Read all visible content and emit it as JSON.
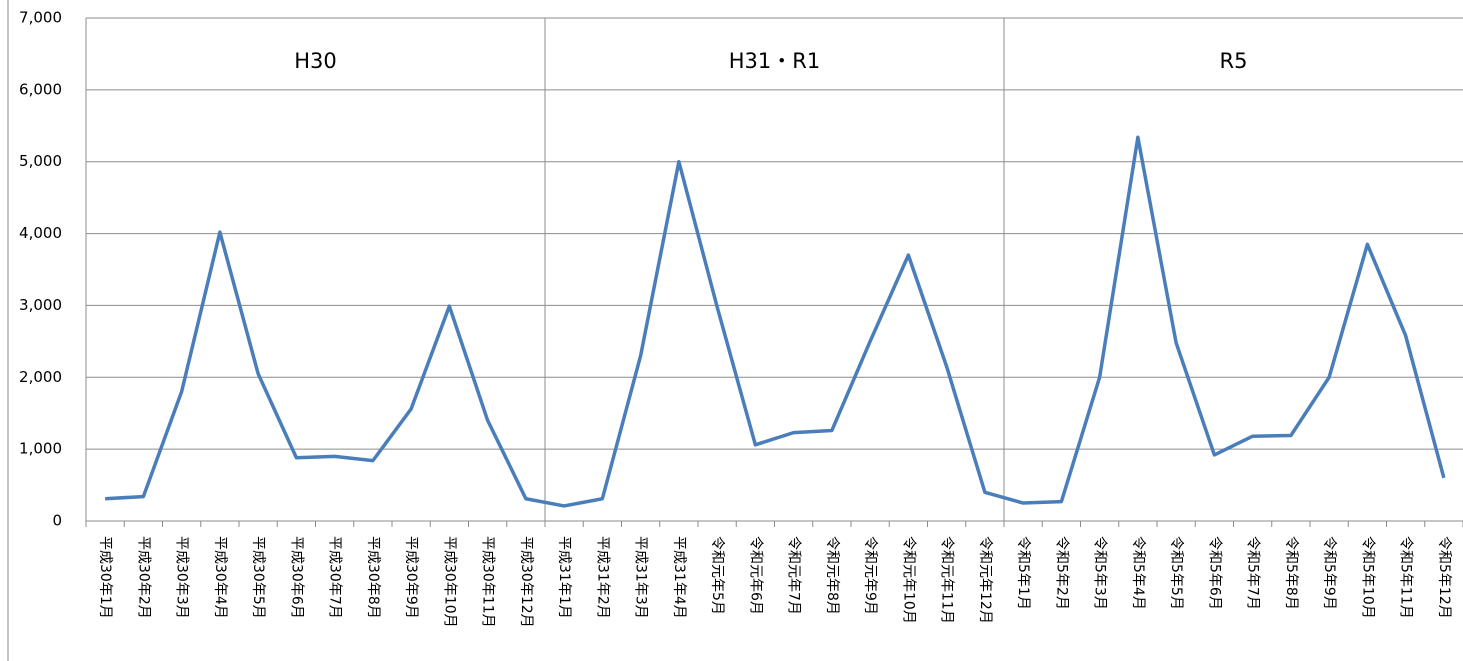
{
  "chart_data": {
    "type": "line",
    "categories": [
      "平成30年1月",
      "平成30年2月",
      "平成30年3月",
      "平成30年4月",
      "平成30年5月",
      "平成30年6月",
      "平成30年7月",
      "平成30年8月",
      "平成30年9月",
      "平成30年10月",
      "平成30年11月",
      "平成30年12月",
      "平成31年1月",
      "平成31年2月",
      "平成31年3月",
      "平成31年4月",
      "令和元年5月",
      "令和元年6月",
      "令和元年7月",
      "令和元年8月",
      "令和元年9月",
      "令和元年10月",
      "令和元年11月",
      "令和元年12月",
      "令和5年1月",
      "令和5年2月",
      "令和5年3月",
      "令和5年4月",
      "令和5年5月",
      "令和5年6月",
      "令和5年7月",
      "令和5年8月",
      "令和5年9月",
      "令和5年10月",
      "令和5年11月",
      "令和5年12月"
    ],
    "series": [
      {
        "color": "#4a7ebb",
        "values": [
          310,
          340,
          1800,
          4020,
          2050,
          880,
          900,
          840,
          1560,
          2990,
          1400,
          310,
          210,
          310,
          2300,
          5000,
          2980,
          1060,
          1230,
          1260,
          2500,
          3700,
          2150,
          400,
          250,
          270,
          2000,
          5340,
          2480,
          920,
          1180,
          1190,
          2000,
          3850,
          2580,
          600
        ]
      }
    ],
    "annotations": [
      "H30",
      "H31・R1",
      "R5"
    ],
    "ylim": [
      0,
      7000
    ],
    "yticks": [
      0,
      {
        "value": 1000,
        "label": "1,000"
      },
      {
        "value": 2000,
        "label": "2,000"
      },
      {
        "value": 3000,
        "label": "3,000"
      },
      {
        "value": 4000,
        "label": "4,000"
      },
      {
        "value": 5000,
        "label": "5,000"
      },
      {
        "value": 6000,
        "label": "6,000"
      },
      {
        "value": 7000,
        "label": "7,000"
      }
    ],
    "grid": true
  }
}
